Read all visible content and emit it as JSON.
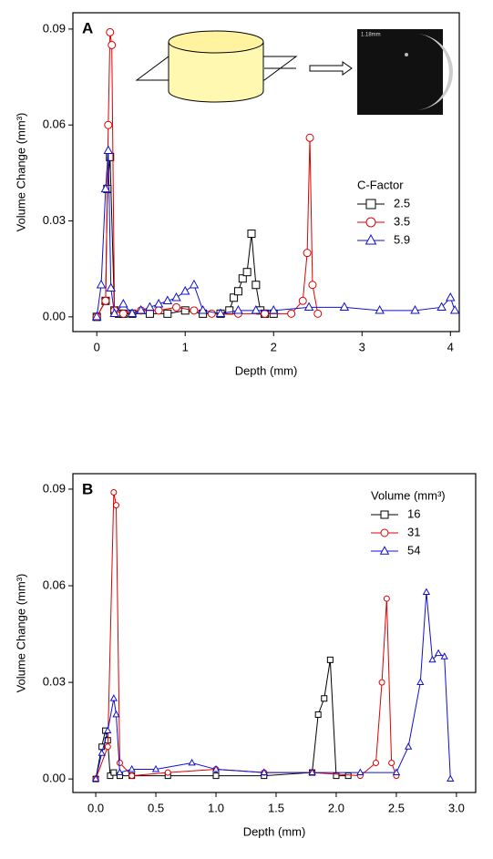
{
  "chart_data": [
    {
      "type": "line",
      "panel_label": "A",
      "xlabel": "Depth (mm)",
      "ylabel": "Volume Change (mm³)",
      "legend_title": "C-Factor",
      "legend": "center right",
      "inset_label": "1.18mm",
      "xlim": [
        -0.27,
        4.1
      ],
      "ylim": [
        -0.0046,
        0.0951
      ],
      "xticks": [
        0,
        1,
        2,
        3,
        4
      ],
      "yticks": [
        {
          "value": 0,
          "label": "0.00"
        },
        {
          "value": 0.03,
          "label": "0.03"
        },
        {
          "value": 0.06,
          "label": "0.06"
        },
        {
          "value": 0.09,
          "label": "0.09"
        }
      ],
      "series": [
        {
          "name": "2.5",
          "color": "#000000",
          "marker": "square",
          "x": [
            0,
            0.1,
            0.12,
            0.15,
            0.2,
            0.25,
            0.3,
            0.4,
            0.6,
            0.8,
            1.0,
            1.2,
            1.4,
            1.5,
            1.55,
            1.6,
            1.65,
            1.7,
            1.75,
            1.8,
            1.85,
            1.9,
            2.0
          ],
          "values": [
            0,
            0.005,
            0.04,
            0.05,
            0.002,
            0.001,
            0.001,
            0.001,
            0.001,
            0.001,
            0.002,
            0.001,
            0.001,
            0.002,
            0.006,
            0.008,
            0.012,
            0.014,
            0.026,
            0.01,
            0.002,
            0.001,
            0.001
          ]
        },
        {
          "name": "3.5",
          "color": "#e00000",
          "marker": "circle",
          "x": [
            0,
            0.1,
            0.13,
            0.15,
            0.17,
            0.2,
            0.3,
            0.5,
            0.7,
            0.9,
            1.1,
            1.3,
            1.6,
            1.9,
            2.2,
            2.33,
            2.38,
            2.41,
            2.44,
            2.5
          ],
          "values": [
            0,
            0.005,
            0.06,
            0.089,
            0.085,
            0.002,
            0.001,
            0.002,
            0.002,
            0.003,
            0.002,
            0.001,
            0.001,
            0.001,
            0.001,
            0.005,
            0.02,
            0.056,
            0.01,
            0.001
          ]
        },
        {
          "name": "5.9",
          "color": "#1010d0",
          "marker": "triangle",
          "x": [
            0,
            0.05,
            0.1,
            0.13,
            0.16,
            0.2,
            0.3,
            0.4,
            0.5,
            0.6,
            0.7,
            0.8,
            0.9,
            1.0,
            1.1,
            1.2,
            1.4,
            1.6,
            1.8,
            2.0,
            2.4,
            2.8,
            3.2,
            3.6,
            3.9,
            4.0,
            4.05
          ],
          "values": [
            0,
            0.01,
            0.04,
            0.052,
            0.009,
            0.001,
            0.004,
            0.001,
            0.002,
            0.003,
            0.004,
            0.005,
            0.006,
            0.008,
            0.01,
            0.002,
            0.001,
            0.002,
            0.002,
            0.002,
            0.003,
            0.003,
            0.002,
            0.002,
            0.003,
            0.006,
            0.002
          ]
        }
      ]
    },
    {
      "type": "line",
      "panel_label": "B",
      "xlabel": "Depth (mm)",
      "ylabel": "Volume Change (mm³)",
      "legend_title": "Volume (mm³)",
      "legend": "upper right",
      "xlim": [
        -0.19,
        3.16
      ],
      "ylim": [
        -0.0042,
        0.0948
      ],
      "xticks": [
        {
          "value": 0,
          "label": "0.0"
        },
        {
          "value": 0.5,
          "label": "0.5"
        },
        {
          "value": 1,
          "label": "1.0"
        },
        {
          "value": 1.5,
          "label": "1.5"
        },
        {
          "value": 2,
          "label": "2.0"
        },
        {
          "value": 2.5,
          "label": "2.5"
        },
        {
          "value": 3,
          "label": "3.0"
        }
      ],
      "yticks": [
        {
          "value": 0,
          "label": "0.00"
        },
        {
          "value": 0.03,
          "label": "0.03"
        },
        {
          "value": 0.06,
          "label": "0.06"
        },
        {
          "value": 0.09,
          "label": "0.09"
        }
      ],
      "series": [
        {
          "name": "16",
          "color": "#000000",
          "marker": "square",
          "x": [
            0,
            0.05,
            0.08,
            0.1,
            0.12,
            0.15,
            0.2,
            0.3,
            0.6,
            1.0,
            1.4,
            1.8,
            1.85,
            1.9,
            1.95,
            2.0,
            2.1
          ],
          "values": [
            0,
            0.01,
            0.015,
            0.012,
            0.001,
            0.002,
            0.001,
            0.001,
            0.001,
            0.001,
            0.001,
            0.002,
            0.02,
            0.025,
            0.037,
            0.001,
            0.001
          ]
        },
        {
          "name": "31",
          "color": "#e00000",
          "marker": "circle",
          "x": [
            0,
            0.1,
            0.15,
            0.17,
            0.2,
            0.3,
            0.6,
            1.0,
            1.4,
            1.8,
            2.2,
            2.33,
            2.38,
            2.42,
            2.46,
            2.5
          ],
          "values": [
            0,
            0.01,
            0.089,
            0.085,
            0.005,
            0.001,
            0.002,
            0.003,
            0.002,
            0.002,
            0.001,
            0.005,
            0.03,
            0.056,
            0.005,
            0.001
          ]
        },
        {
          "name": "54",
          "color": "#1010d0",
          "marker": "triangle",
          "x": [
            0,
            0.05,
            0.1,
            0.15,
            0.17,
            0.2,
            0.3,
            0.5,
            0.8,
            1.0,
            1.4,
            1.8,
            2.2,
            2.5,
            2.6,
            2.7,
            2.75,
            2.8,
            2.85,
            2.9,
            2.95
          ],
          "values": [
            0,
            0.008,
            0.015,
            0.025,
            0.02,
            0.002,
            0.003,
            0.003,
            0.005,
            0.003,
            0.002,
            0.002,
            0.002,
            0.002,
            0.01,
            0.03,
            0.058,
            0.037,
            0.039,
            0.038,
            0
          ]
        }
      ]
    }
  ]
}
